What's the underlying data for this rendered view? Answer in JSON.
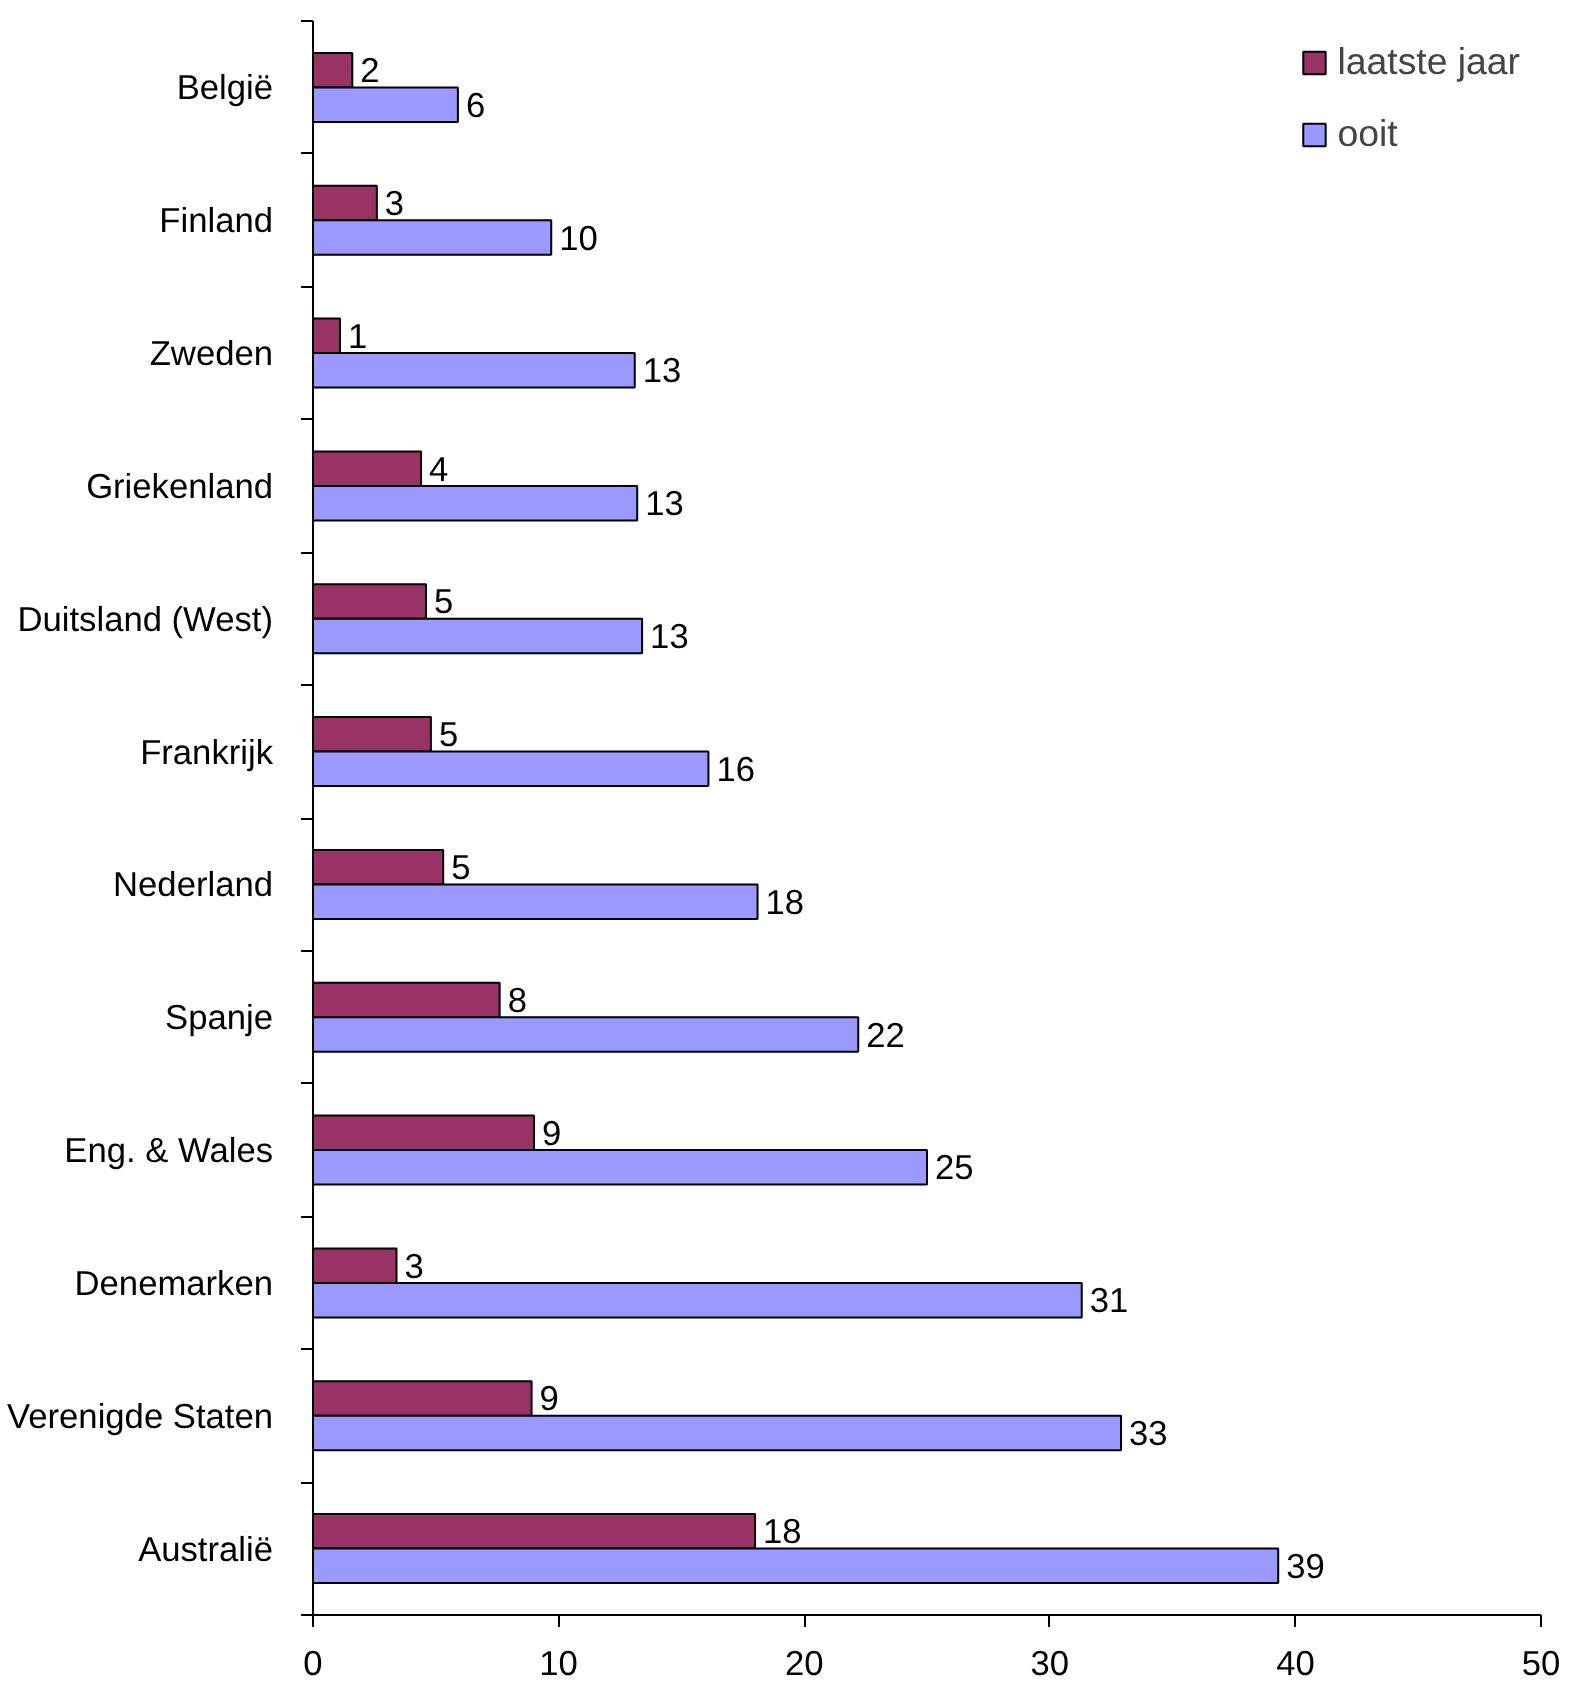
{
  "chart_data": {
    "type": "bar",
    "orientation": "horizontal",
    "categories": [
      "België",
      "Finland",
      "Zweden",
      "Griekenland",
      "Duitsland (West)",
      "Frankrijk",
      "Nederland",
      "Spanje",
      "Eng. & Wales",
      "Denemarken",
      "Verenigde Staten",
      "Australië"
    ],
    "series": [
      {
        "name": "laatste jaar",
        "color": "#993366",
        "values": [
          1.6,
          2.6,
          1.1,
          4.4,
          4.6,
          4.8,
          5.3,
          7.6,
          9.0,
          3.4,
          8.9,
          18.0
        ],
        "value_labels": [
          "2",
          "3",
          "1",
          "4",
          "5",
          "5",
          "5",
          "8",
          "9",
          "3",
          "9",
          "18"
        ]
      },
      {
        "name": "ooit",
        "color": "#9999ff",
        "values": [
          5.9,
          9.7,
          13.1,
          13.2,
          13.4,
          16.1,
          18.1,
          22.2,
          25.0,
          31.3,
          32.9,
          39.3
        ],
        "value_labels": [
          "6",
          "10",
          "13",
          "13",
          "13",
          "16",
          "18",
          "22",
          "25",
          "31",
          "33",
          "39"
        ]
      }
    ],
    "xlim": [
      0,
      50
    ],
    "xticks": [
      0,
      10,
      20,
      30,
      40,
      50
    ],
    "grid": false,
    "legend": "top right"
  }
}
